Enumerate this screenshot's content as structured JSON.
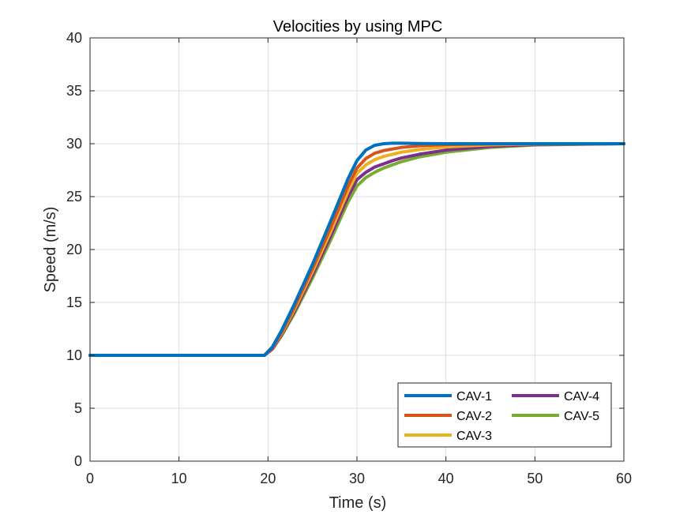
{
  "chart_data": {
    "type": "line",
    "title": "Velocities by using MPC",
    "xlabel": "Time (s)",
    "ylabel": "Speed (m/s)",
    "xlim": [
      0,
      60
    ],
    "ylim": [
      0,
      40
    ],
    "xticks": [
      0,
      10,
      20,
      30,
      40,
      50,
      60
    ],
    "yticks": [
      0,
      5,
      10,
      15,
      20,
      25,
      30,
      35,
      40
    ],
    "grid": true,
    "legend_position": "bottom-right",
    "series": [
      {
        "name": "CAV-1",
        "color": "#0072bd",
        "x": [
          0,
          19.6,
          20.5,
          21.5,
          23,
          25,
          27,
          29,
          30,
          31,
          32,
          33,
          34,
          35,
          37,
          40,
          45,
          50,
          60
        ],
        "y": [
          10,
          10,
          10.8,
          12.3,
          14.9,
          18.6,
          22.6,
          26.7,
          28.4,
          29.4,
          29.85,
          30.0,
          30.05,
          30.05,
          30.02,
          30.0,
          30.0,
          30.0,
          30.0
        ]
      },
      {
        "name": "CAV-2",
        "color": "#d95319",
        "x": [
          0,
          19.6,
          20.5,
          21.5,
          23,
          25,
          27,
          29,
          30,
          31,
          32,
          33,
          34,
          35,
          37,
          40,
          45,
          50,
          60
        ],
        "y": [
          10,
          10,
          10.7,
          12.1,
          14.6,
          18.2,
          22.0,
          26.0,
          27.7,
          28.6,
          29.1,
          29.35,
          29.5,
          29.65,
          29.8,
          29.92,
          29.98,
          30.0,
          30.0
        ]
      },
      {
        "name": "CAV-3",
        "color": "#edb120",
        "x": [
          0,
          19.6,
          20.5,
          21.5,
          23,
          25,
          27,
          29,
          30,
          31,
          32,
          33,
          34,
          35,
          37,
          40,
          45,
          50,
          60
        ],
        "y": [
          10,
          10,
          10.7,
          12.0,
          14.4,
          17.9,
          21.6,
          25.5,
          27.2,
          28.0,
          28.5,
          28.8,
          29.0,
          29.2,
          29.45,
          29.7,
          29.9,
          29.97,
          30.0
        ]
      },
      {
        "name": "CAV-4",
        "color": "#7e2f8e",
        "x": [
          0,
          19.6,
          20.5,
          21.5,
          23,
          25,
          27,
          29,
          30,
          31,
          32,
          33,
          34,
          35,
          37,
          40,
          45,
          50,
          60
        ],
        "y": [
          10,
          10,
          10.6,
          11.9,
          14.2,
          17.6,
          21.2,
          25.0,
          26.6,
          27.3,
          27.8,
          28.1,
          28.4,
          28.65,
          29.0,
          29.4,
          29.75,
          29.92,
          30.0
        ]
      },
      {
        "name": "CAV-5",
        "color": "#77ac30",
        "x": [
          0,
          19.6,
          20.5,
          21.5,
          23,
          25,
          27,
          29,
          30,
          31,
          32,
          33,
          34,
          35,
          37,
          40,
          45,
          50,
          60
        ],
        "y": [
          10,
          10,
          10.6,
          11.8,
          14.0,
          17.3,
          20.8,
          24.5,
          26.0,
          26.8,
          27.3,
          27.7,
          28.0,
          28.3,
          28.75,
          29.2,
          29.65,
          29.88,
          30.0
        ]
      }
    ]
  }
}
